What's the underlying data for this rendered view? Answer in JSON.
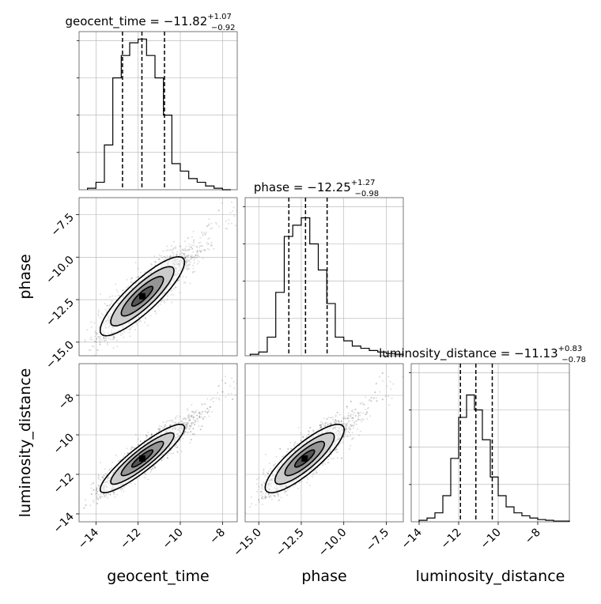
{
  "chart_data": {
    "type": "corner",
    "parameters": [
      "geocent_time",
      "phase",
      "luminosity_distance"
    ],
    "axis_labels": [
      "geocent_time",
      "phase",
      "luminosity_distance"
    ],
    "ranges": [
      [
        -14.8,
        -7.3
      ],
      [
        -15.8,
        -6.5
      ],
      [
        -14.4,
        -6.4
      ]
    ],
    "ticks": [
      {
        "values": [
          -14,
          -12,
          -10,
          -8
        ],
        "labels": [
          "−14",
          "−12",
          "−10",
          "−8"
        ]
      },
      {
        "values": [
          -15.0,
          -12.5,
          -10.0,
          -7.5
        ],
        "labels": [
          "−15.0",
          "−12.5",
          "−10.0",
          "−7.5"
        ]
      },
      {
        "values": [
          -14,
          -12,
          -10,
          -8
        ],
        "labels": [
          "−14",
          "−12",
          "−10",
          "−8"
        ]
      }
    ],
    "titles": [
      {
        "label": "geocent_time = −11.82",
        "sup": "+1.07",
        "sub": "−0.92"
      },
      {
        "label": "phase = −12.25",
        "sup": "+1.27",
        "sub": "−0.98"
      },
      {
        "label": "luminosity_distance = −11.13",
        "sup": "+0.83",
        "sub": "−0.78"
      }
    ],
    "quantiles": [
      [
        -12.74,
        -11.82,
        -10.75
      ],
      [
        -13.23,
        -12.25,
        -10.98
      ],
      [
        -11.91,
        -11.13,
        -10.3
      ]
    ],
    "histograms": [
      {
        "bins": [
          -14.4,
          -14.0,
          -13.6,
          -13.2,
          -12.8,
          -12.4,
          -12.0,
          -11.6,
          -11.2,
          -10.8,
          -10.4,
          -10.0,
          -9.6,
          -9.2,
          -8.8,
          -8.4,
          -8.0,
          -7.6
        ],
        "counts": [
          2,
          10,
          60,
          150,
          180,
          197,
          202,
          180,
          150,
          100,
          35,
          25,
          15,
          10,
          5,
          2,
          0
        ]
      },
      {
        "bins": [
          -15.5,
          -15.0,
          -14.5,
          -14.0,
          -13.5,
          -13.0,
          -12.5,
          -12.0,
          -11.5,
          -11.0,
          -10.5,
          -10.0,
          -9.5,
          -9.0,
          -8.5,
          -8.0,
          -7.5,
          -7.0,
          -6.5
        ],
        "counts": [
          2,
          5,
          25,
          85,
          160,
          175,
          185,
          150,
          115,
          70,
          25,
          20,
          13,
          10,
          7,
          5,
          3,
          2
        ]
      },
      {
        "bins": [
          -14.0,
          -13.6,
          -13.2,
          -12.8,
          -12.4,
          -12.0,
          -11.6,
          -11.2,
          -10.8,
          -10.4,
          -10.0,
          -9.6,
          -9.2,
          -8.8,
          -8.4,
          -8.0,
          -7.6,
          -7.2,
          -6.4
        ],
        "counts": [
          2,
          5,
          12,
          35,
          85,
          140,
          170,
          150,
          110,
          60,
          35,
          20,
          12,
          8,
          5,
          3,
          2,
          1
        ]
      }
    ],
    "ylim_hist": [
      0,
      212
    ],
    "scatter": {
      "pairs": [
        {
          "x": 0,
          "y": 1,
          "mean": [
            -11.8,
            -12.3
          ],
          "cov": [
            [
              1.0,
              1.0
            ],
            [
              1.0,
              1.35
            ]
          ],
          "tail": [
            0.25,
            0.3
          ]
        },
        {
          "x": 0,
          "y": 2,
          "mean": [
            -11.8,
            -11.2
          ],
          "cov": [
            [
              1.0,
              0.78
            ],
            [
              0.78,
              0.75
            ]
          ],
          "tail": [
            0.25,
            0.2
          ]
        },
        {
          "x": 1,
          "y": 2,
          "mean": [
            -12.3,
            -11.2
          ],
          "cov": [
            [
              1.35,
              0.85
            ],
            [
              0.85,
              0.75
            ]
          ],
          "tail": [
            0.3,
            0.2
          ]
        }
      ],
      "n_points": 2400,
      "contour_levels": [
        0.5,
        1.0,
        1.5,
        2.0
      ],
      "contour_fills": [
        "#ffffff",
        "#c9c9c9",
        "#8f8f8f",
        "#4d4d4d"
      ]
    },
    "grid": true,
    "colors": {
      "line": "#000000",
      "grid": "#b0b0b0",
      "points": "#000000"
    }
  }
}
